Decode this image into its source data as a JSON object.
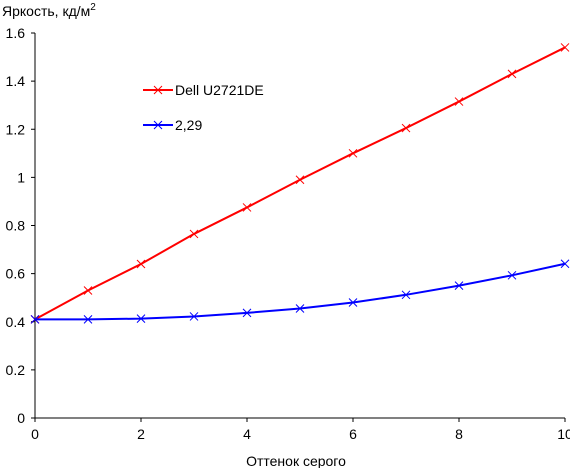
{
  "chart_data": {
    "type": "line",
    "ylabel": "Яркость, кд/м",
    "ylabel_sup": "2",
    "xlabel": "Оттенок серого",
    "xlim": [
      0,
      10
    ],
    "ylim": [
      0,
      1.6
    ],
    "x_ticks": [
      0,
      2,
      4,
      6,
      8,
      10
    ],
    "y_ticks": [
      0,
      0.2,
      0.4,
      0.6,
      0.8,
      1,
      1.2,
      1.4,
      1.6
    ],
    "y_tick_labels": [
      "0",
      "0.2",
      "0.4",
      "0.6",
      "0.8",
      "1",
      "1.2",
      "1.4",
      "1.6"
    ],
    "grid": false,
    "legend_position": "top-left",
    "series": [
      {
        "name": "Dell U2721DE",
        "color": "#ff0000",
        "marker": "x",
        "x": [
          0,
          1,
          2,
          3,
          4,
          5,
          6,
          7,
          8,
          9,
          10
        ],
        "y": [
          0.41,
          0.53,
          0.64,
          0.765,
          0.875,
          0.99,
          1.1,
          1.205,
          1.315,
          1.43,
          1.54
        ]
      },
      {
        "name": "2,29",
        "color": "#0000ff",
        "marker": "x",
        "x": [
          0,
          1,
          2,
          3,
          4,
          5,
          6,
          7,
          8,
          9,
          10
        ],
        "y": [
          0.41,
          0.41,
          0.413,
          0.422,
          0.437,
          0.455,
          0.48,
          0.512,
          0.55,
          0.593,
          0.641
        ]
      }
    ]
  }
}
